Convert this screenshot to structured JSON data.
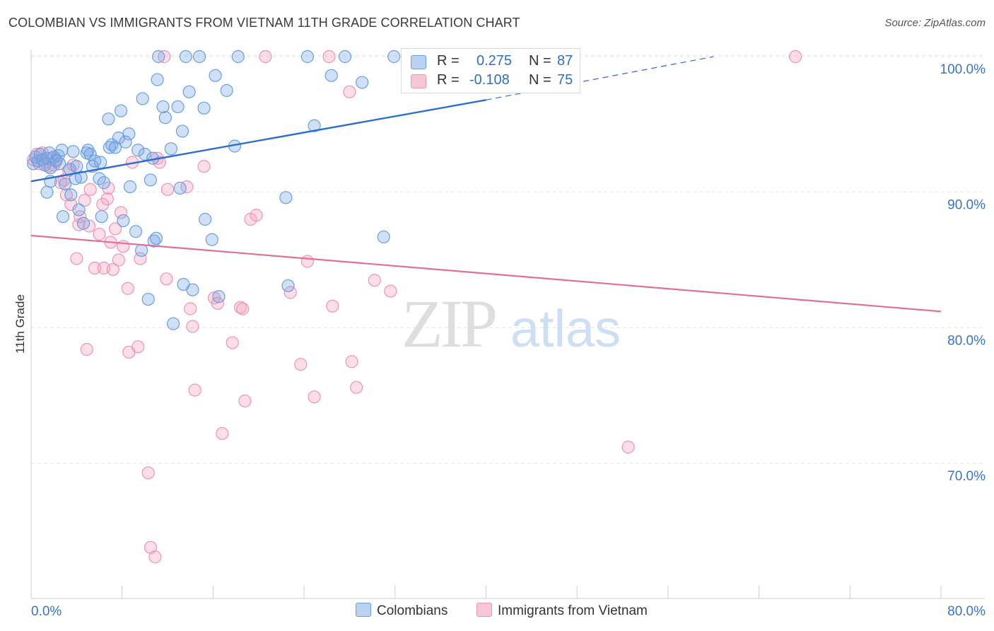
{
  "title": "COLOMBIAN VS IMMIGRANTS FROM VIETNAM 11TH GRADE CORRELATION CHART",
  "source": "Source: ZipAtlas.com",
  "watermark": {
    "zip": "ZIP",
    "atlas": "atlas"
  },
  "legend": {
    "colombians": {
      "r_label": "R =",
      "r_value": "0.275",
      "n_label": "N =",
      "n_value": "87"
    },
    "vietnam": {
      "r_label": "R =",
      "r_value": "-0.108",
      "n_label": "N =",
      "n_value": "75"
    }
  },
  "bottom_legend": {
    "colombians": "Colombians",
    "vietnam": "Immigrants from Vietnam"
  },
  "colors": {
    "blue": "#6a9fe0",
    "blue_line": "#2d6fd0",
    "pink": "#ef93b2",
    "pink_line": "#e0709a",
    "axis_text": "#3a73c9"
  },
  "chart_data": {
    "type": "scatter",
    "title": "COLOMBIAN VS IMMIGRANTS FROM VIETNAM 11TH GRADE CORRELATION CHART",
    "ylabel": "11th Grade",
    "xlabel": "",
    "xlim": [
      0,
      80
    ],
    "ylim": [
      61.5,
      102
    ],
    "x_tick_labels": [
      "0.0%",
      "80.0%"
    ],
    "y_ticks": [
      70,
      80,
      90,
      100
    ],
    "y_tick_labels": [
      "70.0%",
      "80.0%",
      "90.0%",
      "100.0%"
    ],
    "grid": true,
    "series": [
      {
        "name": "Colombians",
        "trend": {
          "x": [
            0,
            40
          ],
          "y": [
            90.8,
            96.8
          ],
          "dashed_to": [
            60,
            100
          ]
        },
        "points": [
          [
            0.2,
            92.1
          ],
          [
            0.4,
            92.6
          ],
          [
            0.6,
            92.3
          ],
          [
            0.8,
            92.8
          ],
          [
            1.0,
            92.4
          ],
          [
            1.2,
            92.0
          ],
          [
            1.4,
            92.5
          ],
          [
            1.7,
            91.8
          ],
          [
            2.0,
            92.6
          ],
          [
            2.2,
            92.3
          ],
          [
            1.4,
            90.0
          ],
          [
            1.7,
            90.8
          ],
          [
            2.4,
            92.7
          ],
          [
            2.7,
            93.1
          ],
          [
            2.8,
            88.2
          ],
          [
            3.0,
            90.6
          ],
          [
            3.4,
            91.7
          ],
          [
            3.5,
            89.8
          ],
          [
            3.7,
            93.0
          ],
          [
            4.0,
            91.9
          ],
          [
            4.2,
            88.7
          ],
          [
            4.4,
            91.1
          ],
          [
            4.6,
            87.7
          ],
          [
            4.9,
            92.9
          ],
          [
            5.0,
            93.1
          ],
          [
            5.2,
            92.8
          ],
          [
            5.4,
            91.9
          ],
          [
            5.6,
            92.3
          ],
          [
            6.0,
            91.0
          ],
          [
            6.2,
            88.2
          ],
          [
            6.4,
            90.7
          ],
          [
            6.8,
            95.4
          ],
          [
            6.9,
            93.3
          ],
          [
            7.1,
            93.5
          ],
          [
            7.4,
            93.3
          ],
          [
            7.7,
            94.0
          ],
          [
            7.9,
            96.0
          ],
          [
            8.1,
            87.9
          ],
          [
            8.6,
            94.3
          ],
          [
            8.7,
            90.4
          ],
          [
            9.2,
            87.1
          ],
          [
            9.4,
            93.1
          ],
          [
            9.7,
            85.7
          ],
          [
            9.8,
            96.9
          ],
          [
            10.0,
            92.8
          ],
          [
            10.3,
            82.1
          ],
          [
            10.5,
            90.9
          ],
          [
            10.8,
            86.4
          ],
          [
            11.0,
            86.6
          ],
          [
            11.1,
            98.3
          ],
          [
            11.2,
            100.0
          ],
          [
            11.6,
            96.3
          ],
          [
            11.8,
            95.5
          ],
          [
            12.3,
            93.2
          ],
          [
            12.5,
            80.3
          ],
          [
            12.9,
            96.3
          ],
          [
            13.1,
            90.3
          ],
          [
            13.3,
            94.5
          ],
          [
            13.4,
            83.2
          ],
          [
            13.6,
            100.0
          ],
          [
            13.9,
            97.4
          ],
          [
            14.2,
            82.8
          ],
          [
            14.8,
            100.0
          ],
          [
            15.2,
            96.2
          ],
          [
            15.3,
            88.0
          ],
          [
            15.9,
            86.5
          ],
          [
            16.2,
            98.6
          ],
          [
            16.5,
            82.3
          ],
          [
            17.2,
            97.5
          ],
          [
            17.9,
            93.4
          ],
          [
            18.2,
            100.0
          ],
          [
            22.4,
            89.6
          ],
          [
            22.6,
            83.1
          ],
          [
            24.3,
            100.0
          ],
          [
            24.9,
            94.9
          ],
          [
            26.4,
            98.6
          ],
          [
            27.6,
            100.0
          ],
          [
            29.1,
            98.1
          ],
          [
            31.0,
            86.7
          ],
          [
            31.9,
            100.0
          ],
          [
            39.5,
            100.0
          ],
          [
            1.6,
            92.9
          ],
          [
            2.5,
            92.1
          ],
          [
            3.9,
            91.0
          ],
          [
            6.1,
            92.2
          ],
          [
            8.3,
            93.7
          ],
          [
            10.7,
            92.5
          ]
        ]
      },
      {
        "name": "Immigrants from Vietnam",
        "trend": {
          "x": [
            0,
            80
          ],
          "y": [
            86.8,
            81.2
          ]
        },
        "points": [
          [
            0.2,
            92.4
          ],
          [
            0.5,
            92.8
          ],
          [
            0.7,
            92.1
          ],
          [
            1.0,
            92.9
          ],
          [
            1.2,
            92.2
          ],
          [
            1.5,
            91.9
          ],
          [
            1.8,
            92.5
          ],
          [
            2.0,
            92.0
          ],
          [
            2.2,
            92.4
          ],
          [
            2.6,
            90.7
          ],
          [
            2.9,
            90.9
          ],
          [
            3.1,
            89.8
          ],
          [
            3.3,
            91.6
          ],
          [
            3.5,
            89.1
          ],
          [
            3.7,
            92.0
          ],
          [
            4.0,
            85.1
          ],
          [
            4.2,
            87.6
          ],
          [
            4.3,
            88.2
          ],
          [
            4.7,
            89.4
          ],
          [
            4.9,
            78.4
          ],
          [
            5.1,
            87.5
          ],
          [
            5.2,
            90.2
          ],
          [
            5.6,
            84.4
          ],
          [
            6.0,
            86.9
          ],
          [
            6.3,
            89.1
          ],
          [
            6.4,
            84.4
          ],
          [
            6.7,
            89.5
          ],
          [
            7.0,
            86.3
          ],
          [
            7.2,
            84.3
          ],
          [
            7.4,
            87.3
          ],
          [
            7.7,
            85.0
          ],
          [
            7.9,
            88.5
          ],
          [
            8.1,
            86.0
          ],
          [
            8.5,
            82.9
          ],
          [
            8.6,
            78.2
          ],
          [
            8.9,
            92.2
          ],
          [
            9.4,
            78.6
          ],
          [
            9.6,
            85.1
          ],
          [
            10.3,
            69.3
          ],
          [
            10.5,
            63.8
          ],
          [
            10.9,
            63.1
          ],
          [
            11.1,
            92.5
          ],
          [
            11.3,
            92.2
          ],
          [
            11.7,
            100.0
          ],
          [
            11.9,
            83.6
          ],
          [
            12.0,
            90.2
          ],
          [
            13.7,
            90.4
          ],
          [
            14.0,
            81.4
          ],
          [
            14.2,
            80.1
          ],
          [
            14.4,
            75.4
          ],
          [
            15.2,
            91.9
          ],
          [
            16.1,
            82.2
          ],
          [
            16.4,
            81.8
          ],
          [
            16.8,
            72.2
          ],
          [
            17.7,
            78.9
          ],
          [
            18.4,
            81.5
          ],
          [
            18.6,
            81.4
          ],
          [
            18.8,
            74.6
          ],
          [
            19.3,
            88.0
          ],
          [
            19.8,
            88.3
          ],
          [
            20.6,
            100.0
          ],
          [
            22.8,
            82.6
          ],
          [
            23.7,
            77.3
          ],
          [
            24.3,
            84.9
          ],
          [
            24.9,
            74.9
          ],
          [
            26.2,
            100.0
          ],
          [
            26.5,
            81.6
          ],
          [
            28.0,
            97.4
          ],
          [
            28.2,
            77.5
          ],
          [
            28.6,
            75.6
          ],
          [
            30.2,
            83.5
          ],
          [
            31.6,
            82.7
          ],
          [
            52.5,
            71.2
          ],
          [
            67.2,
            100.0
          ],
          [
            6.8,
            90.3
          ]
        ]
      }
    ]
  }
}
